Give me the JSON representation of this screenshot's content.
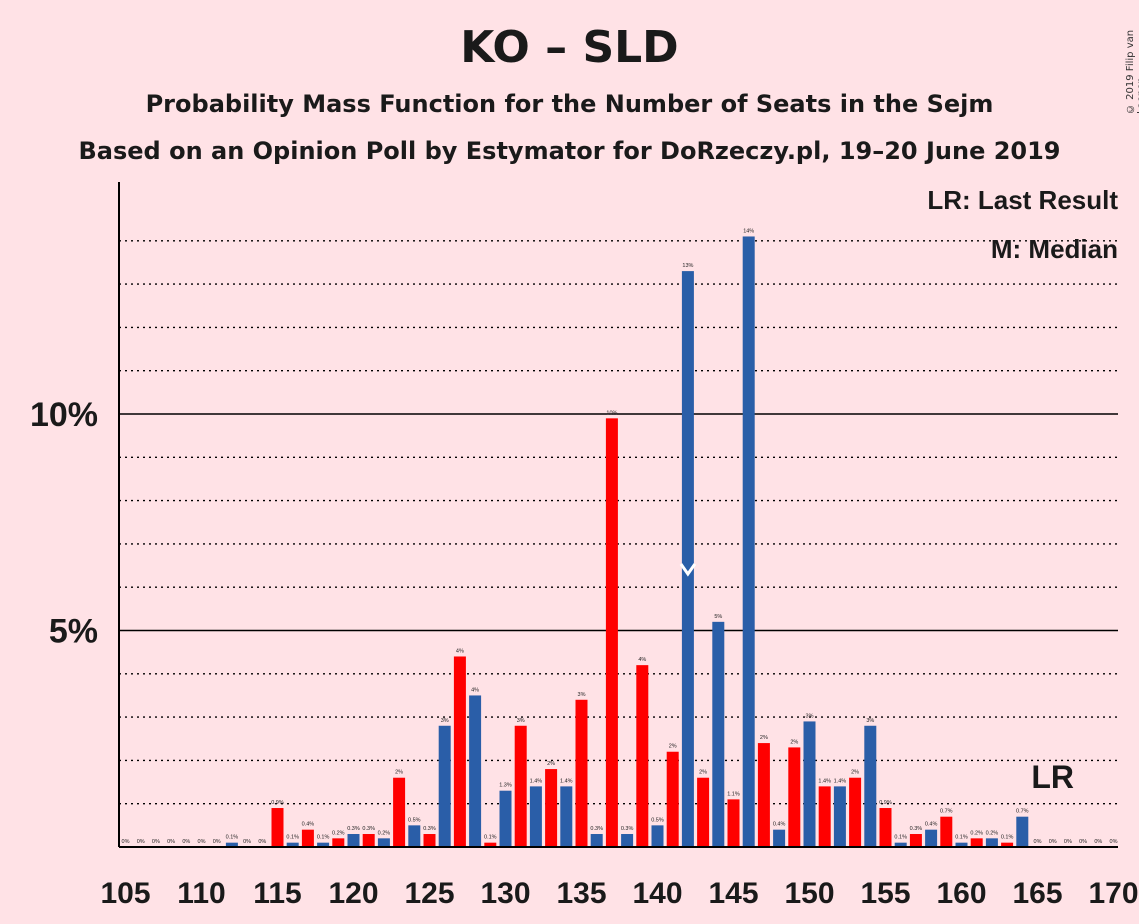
{
  "title": "KO – SLD",
  "subtitle": "Probability Mass Function for the Number of Seats in the Sejm",
  "subtitle2": "Based on an Opinion Poll by Estymator for DoRzeczy.pl, 19–20 June 2019",
  "copyright": "© 2019 Filip van Laenen",
  "legend": {
    "lr": "LR: Last Result",
    "m": "M: Median"
  },
  "colors": {
    "background": "#ffe2e6",
    "red": "#ff0000",
    "blue": "#2a5ea8"
  },
  "chart_data": {
    "type": "bar",
    "xlabel": "",
    "ylabel": "",
    "ylim": [
      0,
      15
    ],
    "y_ticks": [
      {
        "value": 5,
        "label": "5%"
      },
      {
        "value": 10,
        "label": "10%"
      }
    ],
    "x_ticks": [
      105,
      110,
      115,
      120,
      125,
      130,
      135,
      140,
      145,
      150,
      155,
      160,
      165,
      170
    ],
    "median_seat": 142,
    "last_result_seat": 166,
    "last_result_label": "LR",
    "bars": [
      {
        "seat": 105,
        "value": 0,
        "label": "0%"
      },
      {
        "seat": 106,
        "value": 0,
        "label": "0%"
      },
      {
        "seat": 107,
        "value": 0,
        "label": "0%"
      },
      {
        "seat": 108,
        "value": 0,
        "label": "0%"
      },
      {
        "seat": 109,
        "value": 0,
        "label": "0%"
      },
      {
        "seat": 110,
        "value": 0,
        "label": "0%"
      },
      {
        "seat": 111,
        "value": 0,
        "label": "0%"
      },
      {
        "seat": 112,
        "value": 0.1,
        "label": "0.1%"
      },
      {
        "seat": 113,
        "value": 0,
        "label": "0%"
      },
      {
        "seat": 114,
        "value": 0,
        "label": "0%"
      },
      {
        "seat": 115,
        "value": 0.9,
        "label": "0.9%"
      },
      {
        "seat": 116,
        "value": 0.1,
        "label": "0.1%"
      },
      {
        "seat": 117,
        "value": 0.4,
        "label": "0.4%"
      },
      {
        "seat": 118,
        "value": 0.1,
        "label": "0.1%"
      },
      {
        "seat": 119,
        "value": 0.2,
        "label": "0.2%"
      },
      {
        "seat": 120,
        "value": 0.3,
        "label": "0.3%"
      },
      {
        "seat": 121,
        "value": 0.3,
        "label": "0.3%"
      },
      {
        "seat": 122,
        "value": 0.2,
        "label": "0.2%"
      },
      {
        "seat": 123,
        "value": 1.6,
        "label": "2%"
      },
      {
        "seat": 124,
        "value": 0.5,
        "label": "0.5%"
      },
      {
        "seat": 125,
        "value": 0.3,
        "label": "0.3%"
      },
      {
        "seat": 126,
        "value": 2.8,
        "label": "3%"
      },
      {
        "seat": 127,
        "value": 4.4,
        "label": "4%"
      },
      {
        "seat": 128,
        "value": 3.5,
        "label": "4%"
      },
      {
        "seat": 129,
        "value": 0.1,
        "label": "0.1%"
      },
      {
        "seat": 130,
        "value": 1.3,
        "label": "1.3%"
      },
      {
        "seat": 131,
        "value": 2.8,
        "label": "3%"
      },
      {
        "seat": 132,
        "value": 1.4,
        "label": "1.4%"
      },
      {
        "seat": 133,
        "value": 1.8,
        "label": "2%"
      },
      {
        "seat": 134,
        "value": 1.4,
        "label": "1.4%"
      },
      {
        "seat": 135,
        "value": 3.4,
        "label": "3%"
      },
      {
        "seat": 136,
        "value": 0.3,
        "label": "0.3%"
      },
      {
        "seat": 137,
        "value": 9.9,
        "label": "10%"
      },
      {
        "seat": 138,
        "value": 0.3,
        "label": "0.3%"
      },
      {
        "seat": 139,
        "value": 4.2,
        "label": "4%"
      },
      {
        "seat": 140,
        "value": 0.5,
        "label": "0.5%"
      },
      {
        "seat": 141,
        "value": 2.2,
        "label": "2%"
      },
      {
        "seat": 142,
        "value": 13.3,
        "label": "13%"
      },
      {
        "seat": 143,
        "value": 1.6,
        "label": "2%"
      },
      {
        "seat": 144,
        "value": 5.2,
        "label": "5%"
      },
      {
        "seat": 145,
        "value": 1.1,
        "label": "1.1%"
      },
      {
        "seat": 146,
        "value": 14.1,
        "label": "14%"
      },
      {
        "seat": 147,
        "value": 2.4,
        "label": "2%"
      },
      {
        "seat": 148,
        "value": 0.4,
        "label": "0.4%"
      },
      {
        "seat": 149,
        "value": 2.3,
        "label": "2%"
      },
      {
        "seat": 150,
        "value": 2.9,
        "label": "3%"
      },
      {
        "seat": 151,
        "value": 1.4,
        "label": "1.4%"
      },
      {
        "seat": 152,
        "value": 1.4,
        "label": "1.4%"
      },
      {
        "seat": 153,
        "value": 1.6,
        "label": "2%"
      },
      {
        "seat": 154,
        "value": 2.8,
        "label": "3%"
      },
      {
        "seat": 155,
        "value": 0.9,
        "label": "0.9%"
      },
      {
        "seat": 156,
        "value": 0.1,
        "label": "0.1%"
      },
      {
        "seat": 157,
        "value": 0.3,
        "label": "0.3%"
      },
      {
        "seat": 158,
        "value": 0.4,
        "label": "0.4%"
      },
      {
        "seat": 159,
        "value": 0.7,
        "label": "0.7%"
      },
      {
        "seat": 160,
        "value": 0.1,
        "label": "0.1%"
      },
      {
        "seat": 161,
        "value": 0.2,
        "label": "0.2%"
      },
      {
        "seat": 162,
        "value": 0.2,
        "label": "0.2%"
      },
      {
        "seat": 163,
        "value": 0.1,
        "label": "0.1%"
      },
      {
        "seat": 164,
        "value": 0.7,
        "label": "0.7%"
      },
      {
        "seat": 165,
        "value": 0,
        "label": "0%"
      },
      {
        "seat": 166,
        "value": 0,
        "label": "0%"
      },
      {
        "seat": 167,
        "value": 0,
        "label": "0%"
      },
      {
        "seat": 168,
        "value": 0,
        "label": "0%"
      },
      {
        "seat": 169,
        "value": 0,
        "label": "0%"
      },
      {
        "seat": 170,
        "value": 0,
        "label": "0%"
      }
    ]
  }
}
